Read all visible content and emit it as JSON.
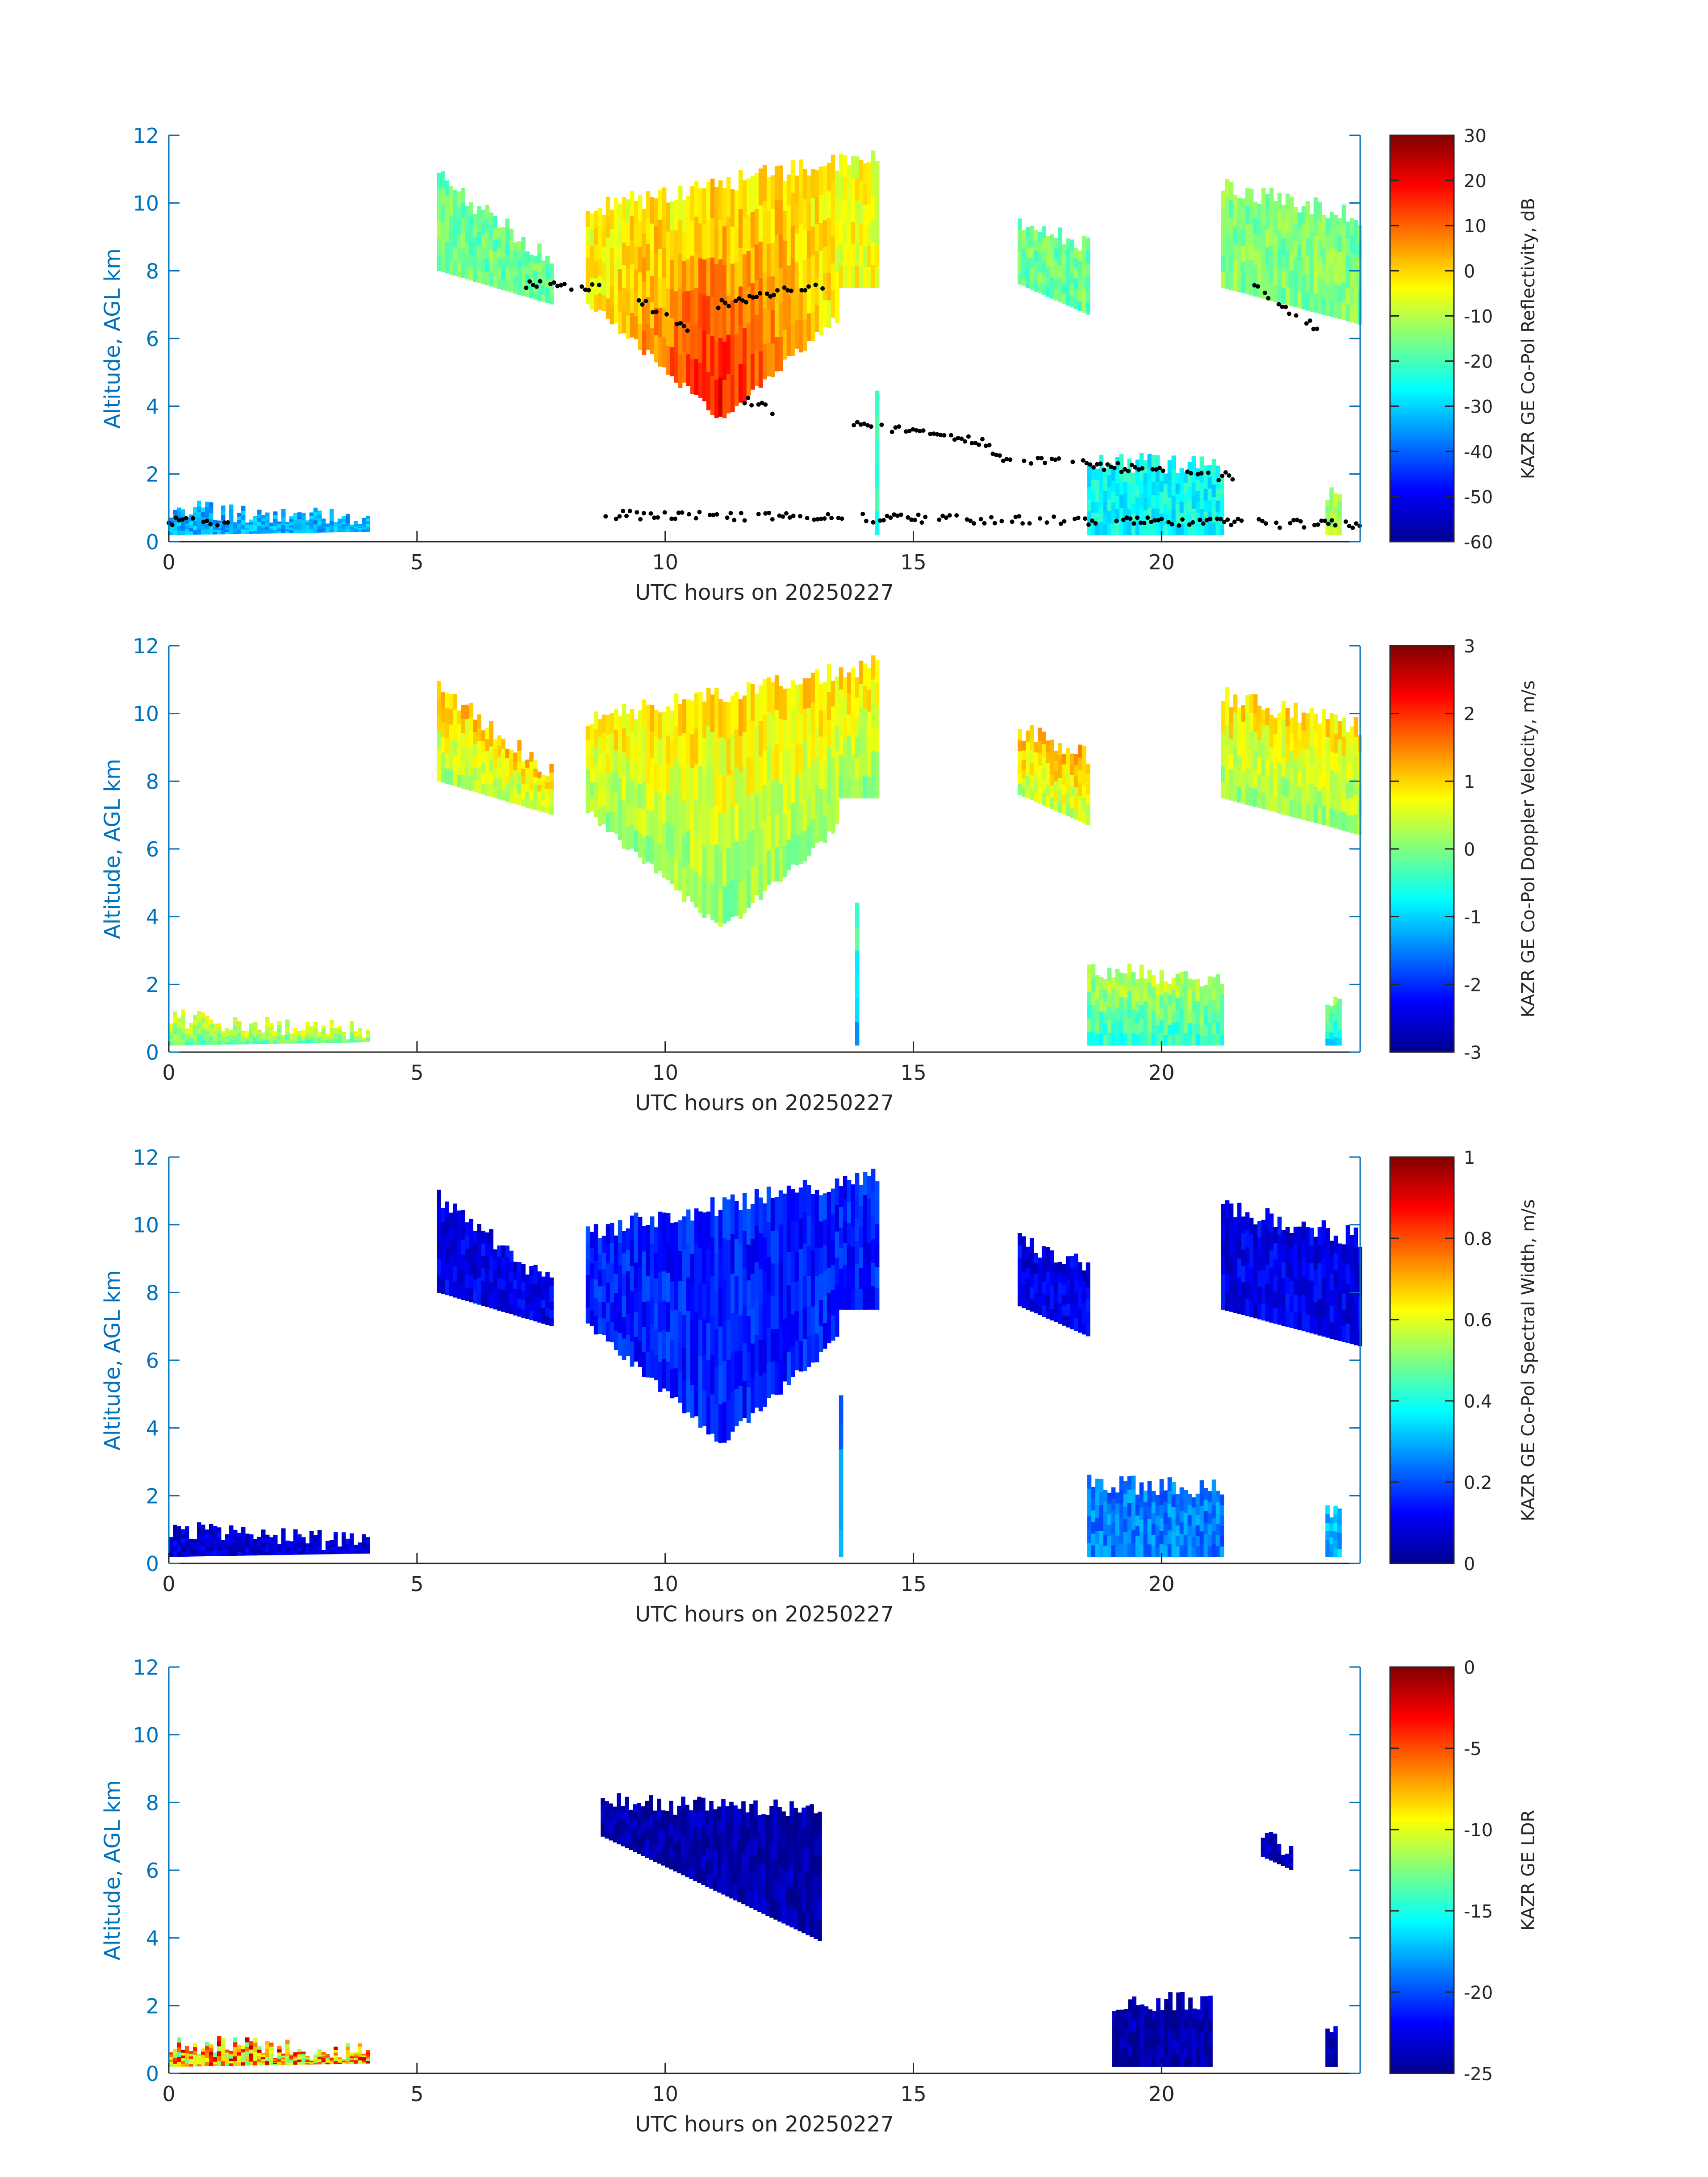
{
  "chart_data": [
    {
      "type": "heatmap",
      "panel": 1,
      "xlabel": "UTC hours on 20250227",
      "ylabel": "Altitude, AGL km",
      "xlim": [
        0,
        24
      ],
      "ylim": [
        0,
        12
      ],
      "x_ticks": [
        0,
        5,
        10,
        15,
        20
      ],
      "y_ticks": [
        0,
        2,
        4,
        6,
        8,
        10,
        12
      ],
      "colorbar": {
        "label": "KAZR GE Co-Pol Reflectivity, dB",
        "range": [
          -60,
          30
        ],
        "ticks": [
          -60,
          -50,
          -40,
          -30,
          -20,
          -10,
          0,
          10,
          20,
          30
        ],
        "colormap": "jet"
      },
      "overlay": "black dots marking cloud base / layer boundaries",
      "grid": false
    },
    {
      "type": "heatmap",
      "panel": 2,
      "xlabel": "UTC hours on 20250227",
      "ylabel": "Altitude, AGL km",
      "xlim": [
        0,
        24
      ],
      "ylim": [
        0,
        12
      ],
      "x_ticks": [
        0,
        5,
        10,
        15,
        20
      ],
      "y_ticks": [
        0,
        2,
        4,
        6,
        8,
        10,
        12
      ],
      "colorbar": {
        "label": "KAZR GE Co-Pol Doppler Velocity, m/s",
        "range": [
          -3,
          3
        ],
        "ticks": [
          -3,
          -2,
          -1,
          0,
          1,
          2,
          3
        ],
        "colormap": "jet"
      },
      "grid": false
    },
    {
      "type": "heatmap",
      "panel": 3,
      "xlabel": "UTC hours on 20250227",
      "ylabel": "Altitude, AGL km",
      "xlim": [
        0,
        24
      ],
      "ylim": [
        0,
        12
      ],
      "x_ticks": [
        0,
        5,
        10,
        15,
        20
      ],
      "y_ticks": [
        0,
        2,
        4,
        6,
        8,
        10,
        12
      ],
      "colorbar": {
        "label": "KAZR GE Co-Pol Spectral Width, m/s",
        "range": [
          0,
          1
        ],
        "ticks": [
          0,
          0.2,
          0.4,
          0.6,
          0.8,
          1
        ],
        "colormap": "jet"
      },
      "grid": false
    },
    {
      "type": "heatmap",
      "panel": 4,
      "xlabel": "UTC hours on 20250227",
      "ylabel": "Altitude, AGL km",
      "xlim": [
        0,
        24
      ],
      "ylim": [
        0,
        12
      ],
      "x_ticks": [
        0,
        5,
        10,
        15,
        20
      ],
      "y_ticks": [
        0,
        2,
        4,
        6,
        8,
        10,
        12
      ],
      "colorbar": {
        "label": "KAZR GE LDR",
        "range": [
          -25,
          0
        ],
        "ticks": [
          -25,
          -20,
          -15,
          -10,
          -5,
          0
        ],
        "colormap": "jet"
      },
      "grid": false
    }
  ],
  "colors": {
    "y_axis": "#0072bd",
    "x_axis": "#262626",
    "jet_stops": [
      "#00008f",
      "#0000ff",
      "#00ffff",
      "#ffff00",
      "#ff0000",
      "#800000"
    ]
  }
}
